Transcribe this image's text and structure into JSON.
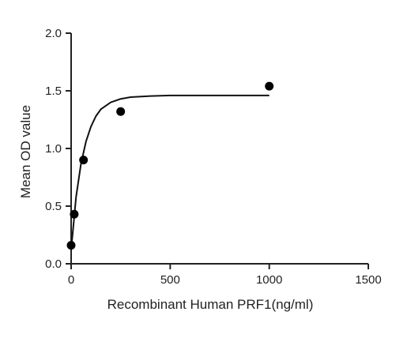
{
  "chart_data": {
    "type": "scatter",
    "title": "",
    "xlabel": "Recombinant Human PRF1(ng/ml)",
    "ylabel": "Mean OD value",
    "xlim": [
      0,
      1500
    ],
    "ylim": [
      0,
      2.0
    ],
    "x_ticks": [
      0,
      500,
      1000,
      1500
    ],
    "y_ticks": [
      0.0,
      0.5,
      1.0,
      1.5,
      2.0
    ],
    "x_tick_labels": [
      "0",
      "500",
      "1000",
      "1500"
    ],
    "y_tick_labels": [
      "0.0",
      "0.5",
      "1.0",
      "1.5",
      "2.0"
    ],
    "grid": false,
    "legend": "none",
    "series": [
      {
        "points": [
          {
            "x": 0,
            "y": 0.16
          },
          {
            "x": 15.6,
            "y": 0.43
          },
          {
            "x": 62.5,
            "y": 0.9
          },
          {
            "x": 250,
            "y": 1.32
          },
          {
            "x": 1000,
            "y": 1.54
          }
        ]
      }
    ],
    "fit_curve": {
      "type": "line",
      "x_range": [
        0,
        1000
      ],
      "x": [
        0,
        25,
        50,
        75,
        100,
        125,
        150,
        200,
        250,
        300,
        400,
        500,
        600,
        800,
        1000
      ],
      "y": [
        0.12,
        0.58,
        0.87,
        1.06,
        1.19,
        1.28,
        1.34,
        1.4,
        1.43,
        1.445,
        1.455,
        1.46,
        1.46,
        1.46,
        1.46
      ]
    },
    "colors": {
      "points": "#000000",
      "curve": "#111111",
      "axes": "#222222"
    }
  }
}
